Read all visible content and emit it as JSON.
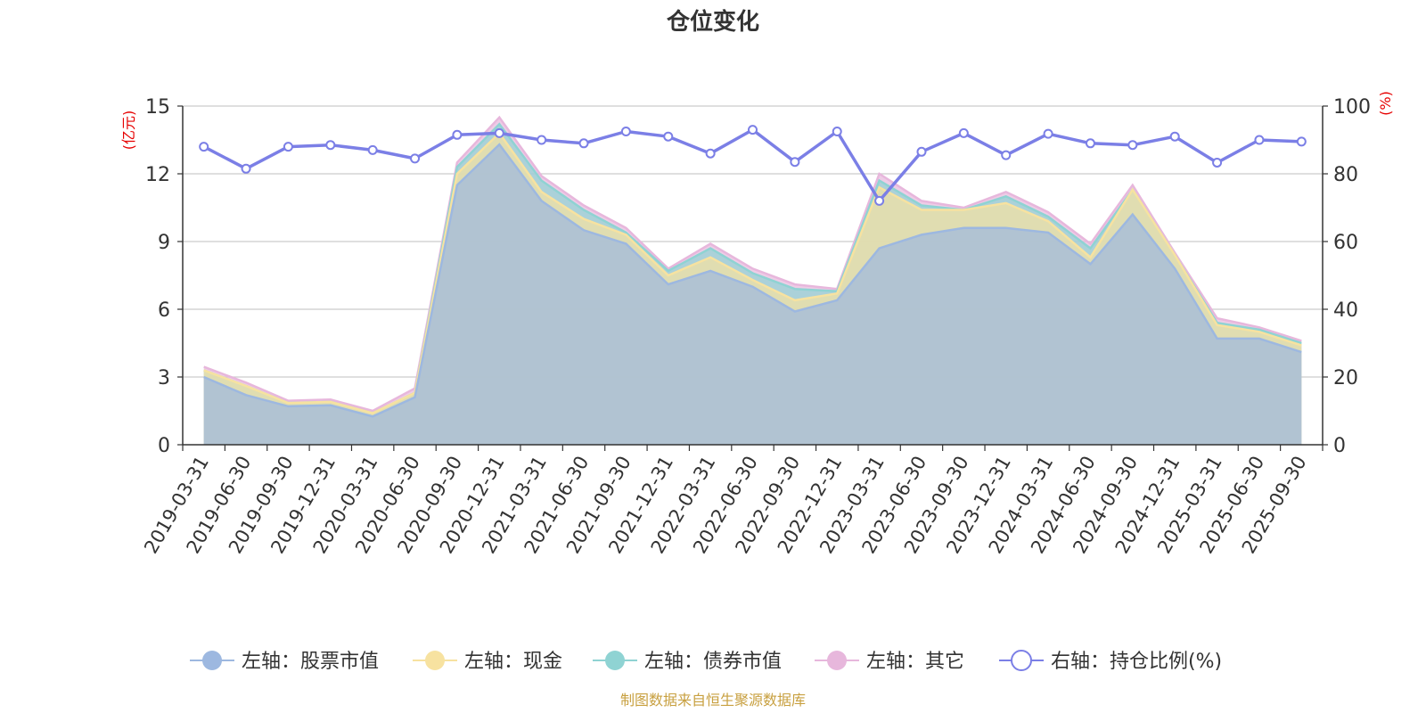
{
  "chart_data": {
    "type": "area",
    "title": "仓位变化",
    "y_left_unit": "(亿元)",
    "y_right_unit": "(%)",
    "y_left_lim": [
      0,
      15
    ],
    "y_left_ticks": [
      "0",
      "3",
      "6",
      "9",
      "12",
      "15"
    ],
    "y_right_lim": [
      0,
      100
    ],
    "y_right_ticks": [
      "0",
      "20",
      "40",
      "60",
      "80",
      "100"
    ],
    "grid": true,
    "legend_position": "bottom",
    "x": [
      "2019-03-31",
      "2019-06-30",
      "2019-09-30",
      "2019-12-31",
      "2020-03-31",
      "2020-06-30",
      "2020-09-30",
      "2020-12-31",
      "2021-03-31",
      "2021-06-30",
      "2021-09-30",
      "2021-12-31",
      "2022-03-31",
      "2022-06-30",
      "2022-09-30",
      "2022-12-31",
      "2023-03-31",
      "2023-06-30",
      "2023-09-30",
      "2023-12-31",
      "2024-03-31",
      "2024-06-30",
      "2024-09-30",
      "2024-12-31",
      "2025-03-31",
      "2025-06-30",
      "2025-09-30"
    ],
    "series": [
      {
        "name": "左轴：股票市值",
        "axis": "left",
        "color": "#9db8e0",
        "values": [
          3.0,
          2.2,
          1.7,
          1.75,
          1.25,
          2.1,
          11.5,
          13.3,
          10.8,
          9.5,
          8.9,
          7.1,
          7.7,
          7.0,
          5.9,
          6.4,
          8.7,
          9.3,
          9.6,
          9.6,
          9.4,
          8.0,
          10.2,
          7.8,
          4.7,
          4.7,
          4.1
        ]
      },
      {
        "name": "左轴：现金",
        "axis": "left",
        "color": "#f7e2a0",
        "values": [
          0.3,
          0.4,
          0.15,
          0.15,
          0.15,
          0.2,
          0.5,
          0.5,
          0.4,
          0.5,
          0.4,
          0.4,
          0.6,
          0.3,
          0.5,
          0.3,
          2.7,
          1.1,
          0.8,
          1.1,
          0.5,
          0.3,
          1.1,
          0.6,
          0.6,
          0.3,
          0.3
        ]
      },
      {
        "name": "左轴：债券市值",
        "axis": "left",
        "color": "#8fd3d3",
        "values": [
          0.0,
          0.0,
          0.0,
          0.0,
          0.0,
          0.0,
          0.3,
          0.4,
          0.5,
          0.4,
          0.1,
          0.2,
          0.4,
          0.3,
          0.5,
          0.1,
          0.3,
          0.2,
          0.0,
          0.3,
          0.2,
          0.4,
          0.0,
          0.0,
          0.1,
          0.1,
          0.1
        ]
      },
      {
        "name": "左轴：其它",
        "axis": "left",
        "color": "#e7b7dc",
        "values": [
          0.15,
          0.15,
          0.1,
          0.1,
          0.1,
          0.2,
          0.2,
          0.3,
          0.2,
          0.2,
          0.2,
          0.1,
          0.2,
          0.2,
          0.2,
          0.1,
          0.3,
          0.2,
          0.1,
          0.2,
          0.2,
          0.2,
          0.2,
          0.1,
          0.2,
          0.1,
          0.1
        ]
      },
      {
        "name": "右轴：持仓比例(%)",
        "axis": "right",
        "color": "#7b7fe6",
        "values": [
          88,
          81.5,
          88,
          88.5,
          87,
          84.5,
          91.5,
          92,
          90,
          89,
          92.5,
          91,
          86,
          93,
          83.5,
          92.5,
          72,
          86.5,
          92,
          85.5,
          91.8,
          89,
          88.5,
          91,
          83.3,
          90,
          89.5
        ]
      }
    ]
  },
  "footer": {
    "source": "制图数据来自恒生聚源数据库"
  }
}
